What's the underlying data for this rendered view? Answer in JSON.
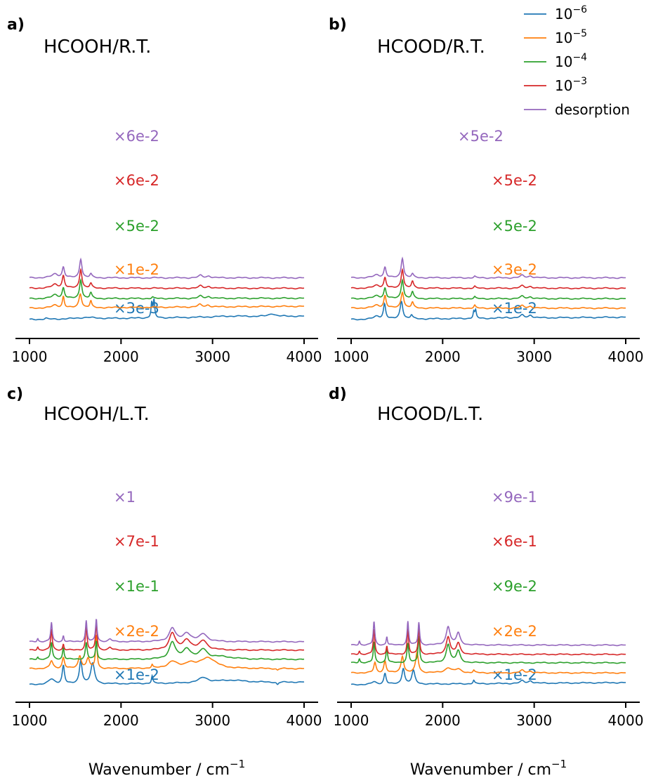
{
  "colors": {
    "1e-6": "#1f77b4",
    "1e-5": "#ff7f0e",
    "1e-4": "#2ca02c",
    "1e-3": "#d62728",
    "desorption": "#9467bd",
    "axis": "#000000"
  },
  "legend": {
    "placement": "top-right",
    "entries": [
      {
        "key": "1e-6",
        "base": "10",
        "exp": "−6"
      },
      {
        "key": "1e-5",
        "base": "10",
        "exp": "−5"
      },
      {
        "key": "1e-4",
        "base": "10",
        "exp": "−4"
      },
      {
        "key": "1e-3",
        "base": "10",
        "exp": "−3"
      },
      {
        "key": "desorption",
        "text": "desorption"
      }
    ]
  },
  "xlabels": {
    "base": "Wavenumber / cm",
    "exp": "−1"
  },
  "chart_data": [
    {
      "type": "line",
      "panel": "a)",
      "title": "HCOOH/R.T.",
      "xlim": [
        1000,
        4000
      ],
      "xticks": [
        "1000",
        "2000",
        "3000",
        "4000"
      ],
      "xlabel": "Wavenumber / cm−1",
      "series": [
        {
          "key": "1e-6",
          "name": "10−6",
          "scale": "×3e-3",
          "offset": 0.0,
          "base_start": 0.0,
          "base_end": 0.35,
          "peaks": [
            [
              1180,
              0.1,
              15
            ],
            [
              1620,
              0.15,
              120
            ],
            [
              2335,
              1.6,
              9
            ],
            [
              2360,
              1.8,
              9
            ],
            [
              3200,
              0.1,
              250
            ],
            [
              3650,
              0.3,
              40
            ]
          ]
        },
        {
          "key": "1e-5",
          "name": "10−5",
          "scale": "×1e-2",
          "offset": 1.2,
          "base_start": 0.0,
          "base_end": 0.2,
          "peaks": [
            [
              1280,
              0.3,
              40
            ],
            [
              1370,
              1.2,
              12
            ],
            [
              1555,
              1.5,
              18
            ],
            [
              1670,
              0.7,
              12
            ],
            [
              2860,
              0.25,
              25
            ],
            [
              2950,
              0.2,
              25
            ]
          ]
        },
        {
          "key": "1e-4",
          "name": "10−4",
          "scale": "×5e-2",
          "offset": 2.2,
          "base_start": 0.0,
          "base_end": 0.05,
          "peaks": [
            [
              1280,
              0.4,
              40
            ],
            [
              1370,
              1.1,
              15
            ],
            [
              1560,
              2.0,
              16
            ],
            [
              1670,
              0.6,
              14
            ],
            [
              2345,
              0.15,
              10
            ],
            [
              2870,
              0.25,
              25
            ],
            [
              2960,
              0.2,
              25
            ]
          ]
        },
        {
          "key": "1e-3",
          "name": "10−3",
          "scale": "×6e-2",
          "offset": 3.3,
          "base_start": 0.0,
          "base_end": 0.0,
          "peaks": [
            [
              1280,
              0.4,
              40
            ],
            [
              1370,
              1.3,
              15
            ],
            [
              1560,
              2.0,
              16
            ],
            [
              1670,
              0.5,
              14
            ],
            [
              2870,
              0.25,
              25
            ],
            [
              2960,
              0.2,
              25
            ]
          ]
        },
        {
          "key": "desorption",
          "name": "desorption",
          "scale": "×6e-2",
          "offset": 4.4,
          "base_start": 0.0,
          "base_end": 0.0,
          "peaks": [
            [
              1280,
              0.4,
              40
            ],
            [
              1370,
              1.1,
              15
            ],
            [
              1560,
              2.0,
              16
            ],
            [
              1670,
              0.4,
              14
            ],
            [
              2870,
              0.25,
              25
            ],
            [
              2960,
              0.2,
              25
            ]
          ]
        }
      ]
    },
    {
      "type": "line",
      "panel": "b)",
      "title": "HCOOD/R.T.",
      "xlim": [
        1000,
        4000
      ],
      "xticks": [
        "1000",
        "2000",
        "3000",
        "4000"
      ],
      "xlabel": "Wavenumber / cm−1",
      "series": [
        {
          "key": "1e-6",
          "name": "10−6",
          "scale": "×1e-2",
          "offset": 0.0,
          "base_start": 0.0,
          "base_end": 0.25,
          "peaks": [
            [
              1280,
              0.3,
              40
            ],
            [
              1365,
              1.6,
              15
            ],
            [
              1550,
              1.9,
              18
            ],
            [
              1660,
              0.4,
              14
            ],
            [
              2340,
              0.7,
              9
            ],
            [
              2360,
              0.8,
              9
            ],
            [
              2700,
              0.1,
              30
            ],
            [
              2870,
              0.3,
              25
            ],
            [
              2960,
              0.3,
              25
            ]
          ]
        },
        {
          "key": "1e-5",
          "name": "10−5",
          "scale": "×3e-2",
          "offset": 1.2,
          "base_start": 0.0,
          "base_end": 0.0,
          "peaks": [
            [
              1280,
              0.3,
              40
            ],
            [
              1370,
              1.3,
              15
            ],
            [
              1560,
              1.7,
              18
            ],
            [
              1670,
              0.6,
              14
            ],
            [
              2350,
              0.3,
              10
            ],
            [
              2870,
              0.25,
              25
            ],
            [
              2960,
              0.2,
              25
            ]
          ]
        },
        {
          "key": "1e-4",
          "name": "10−4",
          "scale": "×5e-2",
          "offset": 2.2,
          "base_start": 0.0,
          "base_end": 0.0,
          "peaks": [
            [
              1280,
              0.3,
              40
            ],
            [
              1370,
              1.1,
              15
            ],
            [
              1560,
              2.0,
              16
            ],
            [
              1670,
              0.7,
              14
            ],
            [
              2350,
              0.2,
              10
            ],
            [
              2870,
              0.25,
              25
            ],
            [
              2960,
              0.2,
              25
            ]
          ]
        },
        {
          "key": "1e-3",
          "name": "10−3",
          "scale": "×5e-2",
          "offset": 3.3,
          "base_start": 0.0,
          "base_end": 0.0,
          "peaks": [
            [
              1280,
              0.3,
              40
            ],
            [
              1370,
              1.1,
              15
            ],
            [
              1560,
              2.0,
              16
            ],
            [
              1670,
              0.7,
              14
            ],
            [
              2350,
              0.2,
              10
            ],
            [
              2870,
              0.25,
              25
            ],
            [
              2960,
              0.2,
              25
            ]
          ]
        },
        {
          "key": "desorption",
          "name": "desorption",
          "scale": "×5e-2",
          "offset": 4.4,
          "base_start": 0.0,
          "base_end": 0.0,
          "peaks": [
            [
              1280,
              0.3,
              40
            ],
            [
              1370,
              1.1,
              15
            ],
            [
              1560,
              2.1,
              16
            ],
            [
              1670,
              0.4,
              14
            ],
            [
              2350,
              0.15,
              10
            ],
            [
              2870,
              0.25,
              25
            ],
            [
              2960,
              0.2,
              25
            ]
          ]
        }
      ]
    },
    {
      "type": "line",
      "panel": "c)",
      "title": "HCOOH/L.T.",
      "xlim": [
        1000,
        4000
      ],
      "xticks": [
        "1000",
        "2000",
        "3000",
        "4000"
      ],
      "xlabel": "Wavenumber / cm−1",
      "series": [
        {
          "key": "1e-6",
          "name": "10−6",
          "scale": "×1e-2",
          "offset": 0.0,
          "base_start": 0.0,
          "base_end": 0.3,
          "peaks": [
            [
              1240,
              0.6,
              40
            ],
            [
              1370,
              2.2,
              15
            ],
            [
              1560,
              2.8,
              18
            ],
            [
              1690,
              2.4,
              25
            ],
            [
              2340,
              0.9,
              9
            ],
            [
              2900,
              0.6,
              60
            ],
            [
              3200,
              0.3,
              200
            ],
            [
              3710,
              -0.3,
              12
            ]
          ]
        },
        {
          "key": "1e-5",
          "name": "10−5",
          "scale": "×2e-2",
          "offset": 1.9,
          "base_start": 0.0,
          "base_end": 0.0,
          "peaks": [
            [
              1240,
              0.9,
              20
            ],
            [
              1370,
              1.3,
              15
            ],
            [
              1550,
              1.5,
              20
            ],
            [
              1640,
              1.2,
              20
            ],
            [
              1730,
              4.0,
              10
            ],
            [
              2340,
              0.4,
              10
            ],
            [
              2560,
              0.8,
              60
            ],
            [
              2750,
              0.6,
              60
            ],
            [
              2950,
              1.3,
              100
            ],
            [
              3710,
              -0.2,
              12
            ]
          ]
        },
        {
          "key": "1e-4",
          "name": "10−4",
          "scale": "×1e-1",
          "offset": 3.0,
          "base_start": 0.0,
          "base_end": 0.0,
          "peaks": [
            [
              1090,
              0.3,
              8
            ],
            [
              1240,
              2.0,
              12
            ],
            [
              1370,
              1.4,
              10
            ],
            [
              1620,
              2.0,
              12
            ],
            [
              1730,
              2.2,
              10
            ],
            [
              2560,
              2.0,
              40
            ],
            [
              2720,
              1.2,
              50
            ],
            [
              2900,
              1.1,
              50
            ],
            [
              3100,
              0.3,
              150
            ]
          ]
        },
        {
          "key": "1e-3",
          "name": "10−3",
          "scale": "×7e-1",
          "offset": 4.1,
          "base_start": 0.0,
          "base_end": 0.0,
          "peaks": [
            [
              1090,
              0.4,
              8
            ],
            [
              1240,
              2.5,
              10
            ],
            [
              1370,
              0.7,
              8
            ],
            [
              1620,
              3.0,
              10
            ],
            [
              1730,
              3.3,
              10
            ],
            [
              1880,
              0.3,
              20
            ],
            [
              2560,
              2.0,
              40
            ],
            [
              2720,
              1.2,
              50
            ],
            [
              2900,
              1.1,
              50
            ]
          ]
        },
        {
          "key": "desorption",
          "name": "desorption",
          "scale": "×1",
          "offset": 5.1,
          "base_start": 0.0,
          "base_end": 0.0,
          "peaks": [
            [
              1090,
              0.4,
              8
            ],
            [
              1240,
              2.3,
              10
            ],
            [
              1370,
              0.7,
              8
            ],
            [
              1620,
              2.5,
              10
            ],
            [
              1730,
              2.7,
              10
            ],
            [
              1880,
              0.3,
              20
            ],
            [
              2560,
              1.6,
              40
            ],
            [
              2720,
              1.0,
              50
            ],
            [
              2900,
              0.9,
              50
            ]
          ]
        }
      ]
    },
    {
      "type": "line",
      "panel": "d)",
      "title": "HCOOD/L.T.",
      "xlim": [
        1000,
        4000
      ],
      "xticks": [
        "1000",
        "2000",
        "3000",
        "4000"
      ],
      "xlabel": "Wavenumber / cm−1",
      "series": [
        {
          "key": "1e-6",
          "name": "10−6",
          "scale": "×1e-2",
          "offset": 0.0,
          "base_start": 0.0,
          "base_end": 0.25,
          "peaks": [
            [
              1250,
              0.3,
              30
            ],
            [
              1370,
              1.3,
              15
            ],
            [
              1570,
              1.9,
              18
            ],
            [
              1680,
              1.6,
              20
            ],
            [
              2340,
              0.4,
              10
            ],
            [
              2870,
              0.3,
              25
            ],
            [
              2960,
              0.3,
              25
            ]
          ]
        },
        {
          "key": "1e-5",
          "name": "10−5",
          "scale": "×2e-2",
          "offset": 1.4,
          "base_start": 0.0,
          "base_end": 0.0,
          "peaks": [
            [
              1260,
              1.2,
              15
            ],
            [
              1370,
              1.4,
              15
            ],
            [
              1560,
              2.0,
              18
            ],
            [
              1720,
              2.4,
              18
            ],
            [
              2060,
              0.6,
              40
            ],
            [
              2170,
              0.4,
              40
            ],
            [
              2340,
              0.3,
              10
            ],
            [
              2870,
              0.3,
              25
            ],
            [
              2960,
              0.2,
              25
            ]
          ]
        },
        {
          "key": "1e-4",
          "name": "10−4",
          "scale": "×9e-2",
          "offset": 2.6,
          "base_start": 0.0,
          "base_end": 0.0,
          "peaks": [
            [
              1090,
              0.5,
              8
            ],
            [
              1250,
              2.5,
              10
            ],
            [
              1390,
              1.8,
              10
            ],
            [
              1620,
              2.3,
              12
            ],
            [
              1740,
              3.2,
              10
            ],
            [
              2060,
              2.2,
              25
            ],
            [
              2170,
              1.4,
              25
            ]
          ]
        },
        {
          "key": "1e-3",
          "name": "10−3",
          "scale": "×6e-1",
          "offset": 3.6,
          "base_start": 0.0,
          "base_end": 0.0,
          "peaks": [
            [
              1090,
              0.4,
              8
            ],
            [
              1250,
              3.0,
              10
            ],
            [
              1390,
              1.0,
              8
            ],
            [
              1620,
              3.0,
              10
            ],
            [
              1740,
              3.2,
              10
            ],
            [
              2060,
              2.1,
              25
            ],
            [
              2170,
              1.3,
              25
            ]
          ]
        },
        {
          "key": "desorption",
          "name": "desorption",
          "scale": "×9e-1",
          "offset": 4.7,
          "base_start": 0.0,
          "base_end": 0.0,
          "peaks": [
            [
              1090,
              0.5,
              8
            ],
            [
              1250,
              2.8,
              10
            ],
            [
              1390,
              1.0,
              8
            ],
            [
              1620,
              2.8,
              10
            ],
            [
              1740,
              2.7,
              10
            ],
            [
              2060,
              2.2,
              25
            ],
            [
              2170,
              1.4,
              25
            ]
          ]
        }
      ]
    }
  ]
}
